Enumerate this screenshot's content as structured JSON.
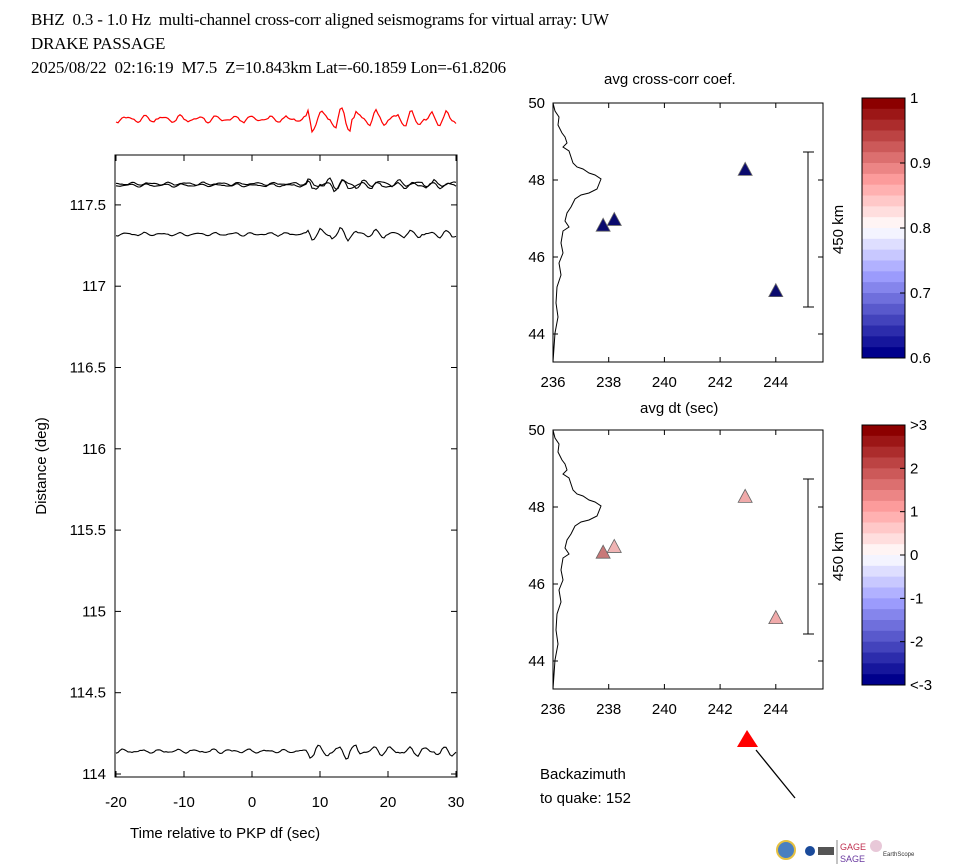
{
  "header": {
    "line1": "BHZ  0.3 - 1.0 Hz  multi-channel cross-corr aligned seismograms for virtual array: UW",
    "line2": "DRAKE PASSAGE",
    "line3": "2025/08/22  02:16:19  M7.5  Z=10.843km Lat=-60.1859 Lon=-61.8206"
  },
  "backazimuth": {
    "line1": "Backazimuth",
    "line2": "to quake:  152",
    "value": 152
  },
  "colors": {
    "stack_trace": "#ff0000",
    "trace": "#000000",
    "quake_arrow": "#ff0000"
  },
  "chart_data": [
    {
      "type": "line",
      "xlabel": "Time relative to PKP df (sec)",
      "ylabel": "Distance (deg)",
      "xlim": [
        -20,
        30
      ],
      "ylim": [
        114,
        117.85
      ],
      "xticks": [
        "-20",
        "-10",
        "0",
        "10",
        "20",
        "30"
      ],
      "yticks": [
        "114",
        "114.5",
        "115",
        "115.5",
        "116",
        "116.5",
        "117",
        "117.5"
      ],
      "series": [
        {
          "distance": 117.63
        },
        {
          "distance": 117.62
        },
        {
          "distance": 117.32
        },
        {
          "distance": 114.14
        }
      ]
    },
    {
      "type": "scatter",
      "title": "avg cross-corr coef.",
      "xlabel": "avg dt (sec)",
      "xticks": [
        "236",
        "238",
        "240",
        "242",
        "244"
      ],
      "yticks": [
        "44",
        "46",
        "48",
        "50"
      ],
      "xlim": [
        236,
        246
      ],
      "ylim": [
        43.3,
        50
      ],
      "scale_bar": "450 km",
      "points": [
        {
          "x": 237.8,
          "y": 46.8,
          "color": "#0a0a6e"
        },
        {
          "x": 238.2,
          "y": 46.95,
          "color": "#0a0a6e"
        },
        {
          "x": 242.9,
          "y": 48.25,
          "color": "#0a0a6e"
        },
        {
          "x": 244.0,
          "y": 45.1,
          "color": "#0a0a6e"
        }
      ],
      "colorbar": {
        "ticks": [
          "1",
          "0.9",
          "0.8",
          "0.7",
          "0.6"
        ],
        "range": [
          0.6,
          1
        ]
      }
    },
    {
      "type": "scatter",
      "xticks": [
        "236",
        "238",
        "240",
        "242",
        "244"
      ],
      "yticks": [
        "44",
        "46",
        "48",
        "50"
      ],
      "xlim": [
        236,
        246
      ],
      "ylim": [
        43.3,
        50
      ],
      "scale_bar": "450 km",
      "points": [
        {
          "x": 237.8,
          "y": 46.8,
          "color": "#c87878"
        },
        {
          "x": 238.2,
          "y": 46.95,
          "color": "#f0b4b4"
        },
        {
          "x": 242.9,
          "y": 48.25,
          "color": "#f0aaaa"
        },
        {
          "x": 244.0,
          "y": 45.1,
          "color": "#f0aaaa"
        }
      ],
      "colorbar": {
        "ticks": [
          ">3",
          "2",
          "1",
          "0",
          "-1",
          "-2",
          "<-3"
        ],
        "range": [
          -3,
          3
        ]
      }
    }
  ]
}
